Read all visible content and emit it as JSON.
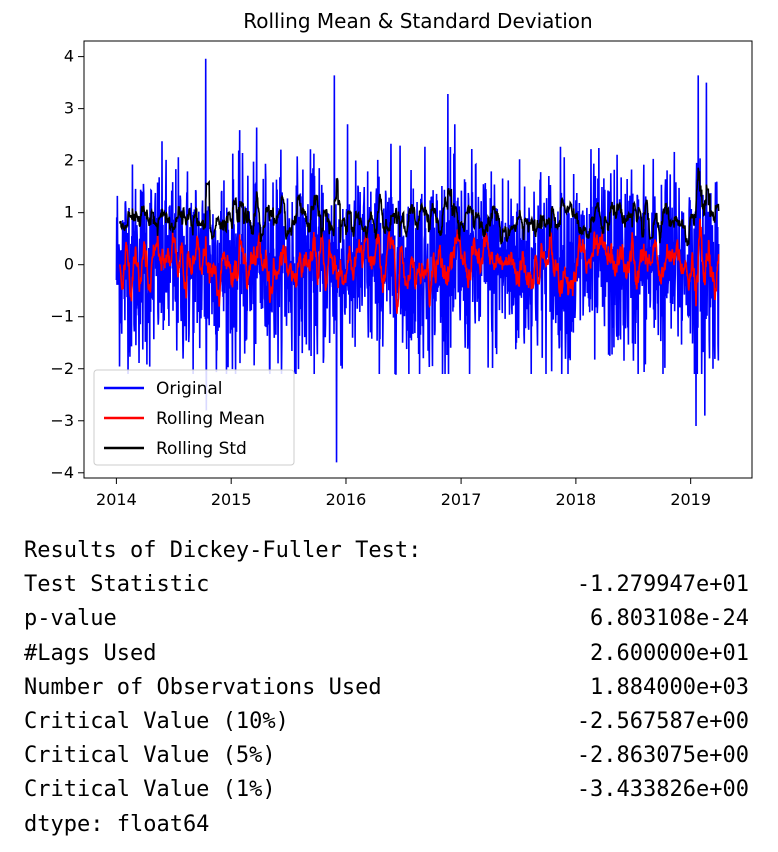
{
  "chart_data": {
    "type": "line",
    "title": "Rolling Mean & Standard Deviation",
    "xlabel": "",
    "ylabel": "",
    "x_range": [
      "2014-01-01",
      "2019-03-31"
    ],
    "xlim": [
      "2013-09-20",
      "2019-07-15"
    ],
    "ylim": [
      -4.1,
      4.3
    ],
    "x_ticks": [
      "2014",
      "2015",
      "2016",
      "2017",
      "2018",
      "2019"
    ],
    "y_ticks": [
      4,
      3,
      2,
      1,
      0,
      -1,
      -2,
      -3,
      -4
    ],
    "y_tick_labels": [
      "4",
      "3",
      "2",
      "1",
      "0",
      "−1",
      "−2",
      "−3",
      "−4"
    ],
    "grid": false,
    "legend_position": "lower-left",
    "series": [
      {
        "name": "Original",
        "color": "#0000ff",
        "typical_range": [
          -1.5,
          2.3
        ],
        "max": 3.96,
        "min": -3.8,
        "spikes": [
          [
            "2014-10-12",
            3.96
          ],
          [
            "2015-11-25",
            3.64
          ],
          [
            "2015-12-02",
            -3.8
          ],
          [
            "2016-11-20",
            3.28
          ],
          [
            "2019-01-25",
            3.64
          ],
          [
            "2019-02-20",
            3.5
          ],
          [
            "2019-01-18",
            -3.1
          ],
          [
            "2019-02-15",
            -2.9
          ],
          [
            "2014-10-14",
            -2.8
          ]
        ]
      },
      {
        "name": "Rolling Mean",
        "color": "#ff0000",
        "typical_range": [
          -0.2,
          0.25
        ],
        "mean": 0.0
      },
      {
        "name": "Rolling Std",
        "color": "#000000",
        "typical_range": [
          0.6,
          1.6
        ],
        "mean": 0.95
      }
    ]
  },
  "results": {
    "heading": "Results of Dickey-Fuller Test:",
    "rows": [
      {
        "label": "Test Statistic",
        "value": "-1.279947e+01"
      },
      {
        "label": "p-value",
        "value": "6.803108e-24"
      },
      {
        "label": "#Lags Used",
        "value": "2.600000e+01"
      },
      {
        "label": "Number of Observations Used",
        "value": "1.884000e+03"
      },
      {
        "label": "Critical Value (10%)",
        "value": "-2.567587e+00"
      },
      {
        "label": "Critical Value (5%)",
        "value": "-2.863075e+00"
      },
      {
        "label": "Critical Value (1%)",
        "value": "-3.433826e+00"
      }
    ],
    "dtype": "dtype: float64"
  }
}
